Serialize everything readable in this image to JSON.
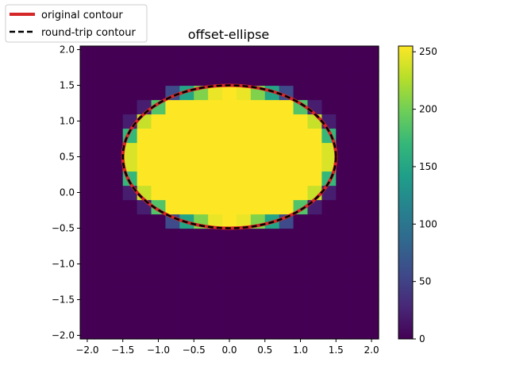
{
  "chart_data": {
    "type": "heatmap",
    "title": "offset-ellipse",
    "xlabel": "",
    "ylabel": "",
    "xlim": [
      -2.1,
      2.1
    ],
    "ylim": [
      -2.05,
      2.05
    ],
    "xticks": [
      "−2.0",
      "−1.5",
      "−1.0",
      "−0.5",
      "0.0",
      "0.5",
      "1.0",
      "1.5",
      "2.0"
    ],
    "xtick_values": [
      -2.0,
      -1.5,
      -1.0,
      -0.5,
      0.0,
      0.5,
      1.0,
      1.5,
      2.0
    ],
    "yticks": [
      "−2.0",
      "−1.5",
      "−1.0",
      "−0.5",
      "0.0",
      "0.5",
      "1.0",
      "1.5",
      "2.0"
    ],
    "ytick_values": [
      -2.0,
      -1.5,
      -1.0,
      -0.5,
      0.0,
      0.5,
      1.0,
      1.5,
      2.0
    ],
    "image": {
      "description_of_content": "binary-ish raster of an ellipse centered at (0, 0.5) with semi-axes 1.5 and 1.0; values 0 outside, 255 inside, intermediate values at boundary",
      "center": [
        0.0,
        0.5
      ],
      "semi_axes": [
        1.5,
        1.0
      ],
      "grid_extent": [
        -2.1,
        2.1,
        -2.1,
        2.1
      ],
      "grid_size": 21,
      "vmin": 0,
      "vmax": 255,
      "colormap": "viridis"
    },
    "colorbar": {
      "ticks": [
        "0",
        "50",
        "100",
        "150",
        "200",
        "250"
      ],
      "tick_values": [
        0,
        50,
        100,
        150,
        200,
        250
      ],
      "range": [
        0,
        255
      ]
    },
    "series": [
      {
        "name": "original contour",
        "color": "#d62728",
        "style": "solid",
        "center": [
          0.0,
          0.5
        ],
        "semi_axes": [
          1.5,
          1.0
        ]
      },
      {
        "name": "round-trip contour",
        "color": "#000000",
        "style": "dashed",
        "center": [
          0.0,
          0.5
        ],
        "semi_axes": [
          1.5,
          1.0
        ]
      }
    ],
    "legend_position": "top-left, outside axes",
    "grid": false
  }
}
